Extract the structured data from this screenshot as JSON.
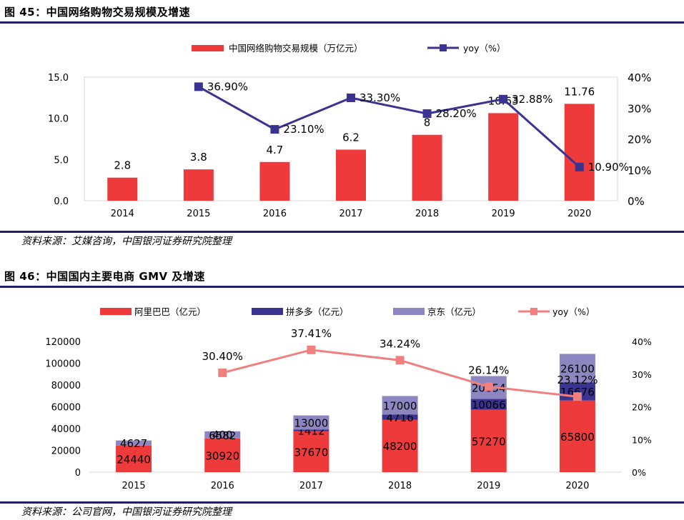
{
  "figure45": {
    "title": "图 45：中国网络购物交易规模及增速",
    "source": "资料来源：艾媒咨询，中国银河证券研究院整理",
    "chart_data": {
      "type": "bar",
      "categories": [
        "2014",
        "2015",
        "2016",
        "2017",
        "2018",
        "2019",
        "2020"
      ],
      "series": [
        {
          "name": "中国网络购物交易规模（万亿元）",
          "kind": "bar",
          "axis": "left",
          "values": [
            2.8,
            3.8,
            4.7,
            6.2,
            8,
            10.63,
            11.76
          ],
          "labels": [
            "2.8",
            "3.8",
            "4.7",
            "6.2",
            "8",
            "10.63",
            "11.76"
          ],
          "color": "#ee3a3a"
        },
        {
          "name": "yoy（%）",
          "kind": "line",
          "axis": "right",
          "values": [
            null,
            36.9,
            23.1,
            33.3,
            28.2,
            32.88,
            10.9
          ],
          "labels": [
            "",
            "36.90%",
            "23.10%",
            "33.30%",
            "28.20%",
            "32.88%",
            "10.90%"
          ],
          "color": "#3b3391"
        }
      ],
      "ylim": [
        0,
        15
      ],
      "yticks": [
        "0.0",
        "5.0",
        "10.0",
        "15.0"
      ],
      "y2lim": [
        0,
        40
      ],
      "y2ticks": [
        "0%",
        "10%",
        "20%",
        "30%",
        "40%"
      ]
    }
  },
  "figure46": {
    "title": "图 46：中国国内主要电商 GMV 及增速",
    "source": "资料来源：公司官网，中国银河证券研究院整理",
    "chart_data": {
      "type": "bar",
      "stacked": true,
      "categories": [
        "2015",
        "2016",
        "2017",
        "2018",
        "2019",
        "2020"
      ],
      "series": [
        {
          "name": "阿里巴巴（亿元）",
          "kind": "bar",
          "values": [
            24440,
            30920,
            37670,
            48200,
            57270,
            65800
          ],
          "labels": [
            "24440",
            "30920",
            "37670",
            "48200",
            "57270",
            "65800"
          ],
          "color": "#ee3a3a"
        },
        {
          "name": "拼多多（亿元）",
          "kind": "bar",
          "values": [
            0,
            0,
            1412,
            4716,
            10066,
            16676
          ],
          "labels": [
            "",
            "",
            "1412",
            "4716",
            "10066",
            "16676"
          ],
          "color": "#3b3391"
        },
        {
          "name": "京东（亿元）",
          "kind": "bar",
          "values": [
            4627,
            6582,
            13000,
            17000,
            20854,
            26100
          ],
          "labels": [
            "4627",
            "6582",
            "13000",
            "17000",
            "20854",
            "26100"
          ],
          "color": "#8e86c0"
        },
        {
          "name": "yoy（%）",
          "kind": "line",
          "axis": "right",
          "values": [
            null,
            30.4,
            37.41,
            34.24,
            26.14,
            23.12
          ],
          "labels": [
            "",
            "30.40%",
            "37.41%",
            "34.24%",
            "26.14%",
            "23.12%"
          ],
          "color": "#f08080"
        }
      ],
      "extra_labels": [
        "400"
      ],
      "ylim": [
        0,
        120000
      ],
      "yticks": [
        "0",
        "20000",
        "40000",
        "60000",
        "80000",
        "100000",
        "120000"
      ],
      "y2lim": [
        0,
        40
      ],
      "y2ticks": [
        "0%",
        "10%",
        "20%",
        "30%",
        "40%"
      ]
    }
  }
}
